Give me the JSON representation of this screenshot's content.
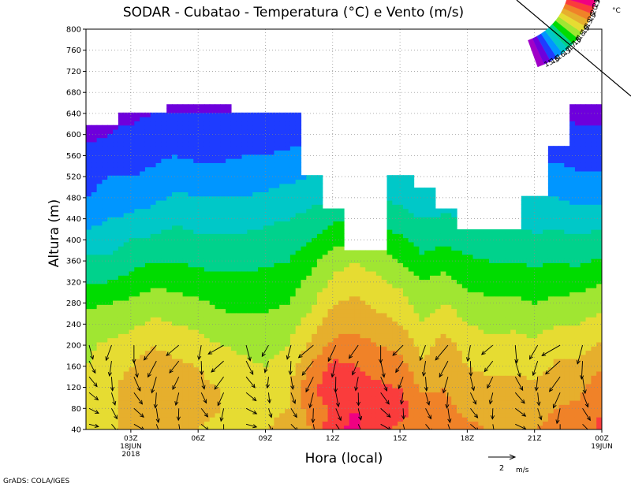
{
  "chart_data": {
    "type": "heatmap",
    "title": "SODAR - Cubatao - Temperatura (°C) e Vento (m/s)",
    "xlabel": "Hora (local)",
    "ylabel": "Altura (m)",
    "xlim": [
      0,
      23
    ],
    "ylim": [
      40,
      800
    ],
    "grid": true,
    "x_ticks": [
      {
        "h": 2,
        "lines": [
          "03Z",
          "18JUN",
          "2018"
        ]
      },
      {
        "h": 5,
        "lines": [
          "06Z"
        ]
      },
      {
        "h": 8,
        "lines": [
          "09Z"
        ]
      },
      {
        "h": 11,
        "lines": [
          "12Z"
        ]
      },
      {
        "h": 14,
        "lines": [
          "15Z"
        ]
      },
      {
        "h": 17,
        "lines": [
          "18Z"
        ]
      },
      {
        "h": 20,
        "lines": [
          "21Z"
        ]
      },
      {
        "h": 23,
        "lines": [
          "00Z",
          "19JUN"
        ]
      }
    ],
    "y_ticks": [
      40,
      80,
      120,
      160,
      200,
      240,
      280,
      320,
      360,
      400,
      440,
      480,
      520,
      560,
      600,
      640,
      680,
      720,
      760,
      800
    ],
    "colorbar": {
      "unit": "°C",
      "levels": [
        "15.5",
        "16",
        "16.5",
        "17",
        "17.5",
        "18",
        "18.5",
        "19",
        "19.5",
        "20",
        "20.5",
        "21"
      ],
      "colors": [
        "#a000c8",
        "#6e00dc",
        "#1e3cff",
        "#0096ff",
        "#00c8c8",
        "#00d28c",
        "#00dc00",
        "#a0e632",
        "#e6dc32",
        "#e6af2d",
        "#f08228",
        "#fa3c3c",
        "#f00082"
      ]
    },
    "top_heights": [
      620,
      620,
      640,
      640,
      660,
      660,
      660,
      640,
      640,
      640,
      520,
      460,
      380,
      380,
      520,
      500,
      460,
      420,
      420,
      420,
      480,
      580,
      660,
      660
    ],
    "temperature_profiles": {
      "levels_m": [
        40,
        80,
        120,
        160,
        200,
        240,
        280,
        320,
        360,
        400,
        440,
        480,
        520,
        560,
        600,
        640,
        660
      ],
      "hours": [
        [
          19.3,
          19.2,
          19.1,
          19.0,
          18.9,
          18.7,
          18.4,
          18.0,
          17.6,
          17.2,
          16.8,
          16.5,
          16.3,
          16.1,
          15.9,
          15.8,
          15.8
        ],
        [
          19.5,
          19.4,
          19.3,
          19.2,
          19.1,
          18.8,
          18.5,
          18.0,
          17.6,
          17.3,
          17.0,
          16.7,
          16.5,
          16.2,
          16.0,
          15.9,
          15.8
        ],
        [
          19.5,
          19.6,
          19.8,
          19.5,
          19.2,
          18.9,
          18.6,
          18.2,
          17.8,
          17.5,
          17.1,
          16.8,
          16.5,
          16.3,
          16.1,
          15.9,
          15.9
        ],
        [
          19.6,
          19.8,
          20.0,
          19.8,
          19.5,
          19.1,
          18.8,
          18.4,
          18.0,
          17.6,
          17.2,
          16.9,
          16.6,
          16.4,
          16.2,
          16.0,
          15.9
        ],
        [
          19.5,
          19.7,
          19.8,
          19.6,
          19.3,
          19.0,
          18.7,
          18.3,
          18.0,
          17.7,
          17.4,
          17.1,
          16.8,
          16.5,
          16.2,
          16.0,
          15.9
        ],
        [
          19.5,
          19.6,
          19.6,
          19.5,
          19.2,
          18.9,
          18.6,
          18.2,
          17.9,
          17.6,
          17.3,
          17.0,
          16.7,
          16.4,
          16.2,
          16.0,
          15.9
        ],
        [
          19.4,
          19.5,
          19.5,
          19.3,
          19.0,
          18.7,
          18.4,
          18.1,
          17.9,
          17.6,
          17.3,
          17.0,
          16.7,
          16.4,
          16.2,
          16.0,
          15.9
        ],
        [
          19.3,
          19.4,
          19.3,
          19.1,
          18.9,
          18.6,
          18.4,
          18.1,
          17.9,
          17.6,
          17.3,
          17.0,
          16.8,
          16.5,
          16.2,
          16.0,
          15.9
        ],
        [
          19.5,
          19.4,
          19.2,
          19.0,
          18.8,
          18.6,
          18.4,
          18.2,
          17.9,
          17.7,
          17.4,
          17.1,
          16.8,
          16.5,
          16.3,
          16.0,
          15.9
        ],
        [
          19.6,
          19.5,
          19.4,
          19.2,
          19.0,
          18.8,
          18.5,
          18.3,
          18.0,
          17.8,
          17.5,
          17.2,
          16.9,
          16.6,
          16.3,
          16.1,
          16.0
        ],
        [
          20.0,
          20.2,
          20.4,
          20.0,
          19.6,
          19.2,
          18.9,
          18.6,
          18.3,
          18.0,
          17.7,
          17.3,
          17.0,
          16.7,
          16.4,
          16.1,
          16.0
        ],
        [
          20.8,
          20.6,
          20.8,
          20.7,
          20.1,
          19.8,
          19.5,
          19.1,
          18.8,
          18.3,
          17.9,
          17.5,
          17.2,
          16.9,
          16.5,
          16.2,
          16.0
        ],
        [
          21.2,
          21.0,
          20.8,
          20.5,
          20.2,
          19.9,
          19.6,
          19.3,
          19.0,
          18.5,
          18.1,
          17.8,
          17.4,
          17.1,
          16.7,
          16.4,
          16.2
        ],
        [
          20.6,
          20.8,
          20.6,
          20.3,
          20.0,
          19.7,
          19.4,
          19.1,
          18.8,
          18.3,
          17.9,
          17.5,
          17.2,
          16.9,
          16.6,
          16.3,
          16.1
        ],
        [
          20.4,
          20.7,
          20.5,
          20.2,
          19.9,
          19.5,
          19.2,
          18.9,
          18.5,
          18.1,
          17.7,
          17.4,
          17.1,
          16.8,
          16.5,
          16.2,
          16.1
        ],
        [
          20.3,
          20.2,
          19.9,
          19.6,
          19.3,
          19.0,
          18.8,
          18.5,
          18.1,
          17.8,
          17.5,
          17.2,
          16.9,
          16.7,
          16.4,
          16.2,
          16.1
        ],
        [
          20.2,
          20.1,
          20.0,
          19.9,
          19.7,
          19.4,
          19.0,
          18.7,
          18.3,
          17.9,
          17.6,
          17.2,
          16.9,
          16.6,
          16.4,
          16.2,
          16.0
        ],
        [
          20.1,
          19.9,
          19.7,
          19.5,
          19.3,
          19.0,
          18.7,
          18.4,
          18.1,
          17.8,
          17.5,
          17.2,
          16.9,
          16.6,
          16.4,
          16.2,
          16.0
        ],
        [
          20.0,
          19.8,
          19.6,
          19.4,
          19.1,
          18.9,
          18.6,
          18.3,
          18.0,
          17.7,
          17.4,
          17.1,
          16.8,
          16.5,
          16.3,
          16.1,
          15.9
        ],
        [
          20.0,
          19.9,
          19.7,
          19.4,
          19.2,
          18.9,
          18.6,
          18.3,
          18.0,
          17.7,
          17.4,
          17.1,
          16.8,
          16.5,
          16.3,
          16.1,
          15.9
        ],
        [
          20.0,
          19.8,
          19.6,
          19.3,
          19.1,
          18.8,
          18.5,
          18.2,
          17.9,
          17.6,
          17.3,
          17.0,
          16.7,
          16.4,
          16.2,
          16.0,
          15.9
        ],
        [
          20.2,
          20.0,
          19.8,
          19.6,
          19.3,
          19.0,
          18.6,
          18.3,
          18.0,
          17.7,
          17.3,
          17.0,
          16.7,
          16.4,
          16.2,
          16.0,
          15.9
        ],
        [
          20.3,
          20.1,
          19.9,
          19.6,
          19.3,
          19.0,
          18.7,
          18.3,
          17.9,
          17.6,
          17.2,
          16.9,
          16.6,
          16.3,
          16.1,
          15.9,
          15.8
        ],
        [
          20.6,
          20.5,
          20.3,
          20.0,
          19.6,
          19.2,
          18.9,
          18.5,
          18.1,
          17.7,
          17.3,
          16.9,
          16.6,
          16.3,
          16.1,
          15.9,
          15.8
        ]
      ]
    },
    "wind": {
      "levels_m": [
        50,
        80,
        110,
        140,
        170,
        200
      ],
      "direction_deg": [
        135,
        170,
        150,
        190,
        200,
        160,
        210,
        135,
        180,
        165,
        200,
        175,
        185,
        150,
        195,
        170,
        190,
        160,
        200,
        145,
        180,
        210,
        165,
        150
      ],
      "speed_ms": [
        0.9,
        1.0,
        1.1,
        1.2,
        1.0,
        0.9,
        1.1,
        1.0,
        0.8,
        0.9,
        1.2,
        1.1,
        1.0,
        1.1,
        0.9,
        1.0,
        1.2,
        1.0,
        0.9,
        1.1,
        1.0,
        1.3,
        1.2,
        1.0
      ],
      "reference_vector": {
        "value": "2",
        "unit": "m/s"
      }
    }
  },
  "footer": {
    "credit": "GrADS: COLA/IGES"
  }
}
